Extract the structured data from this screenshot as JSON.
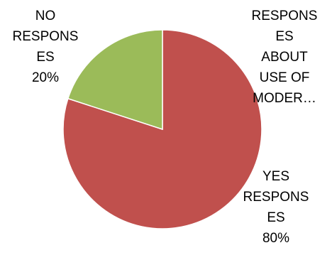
{
  "chart_data": {
    "type": "pie",
    "title": "RESPONSES ABOUT USE OF MODER…",
    "title_lines": [
      "RESPONS",
      "ES",
      "ABOUT",
      "USE OF",
      "MODER…"
    ],
    "slices": [
      {
        "name": "YES RESPONSES",
        "value": 80,
        "percent_label": "80%",
        "label_lines": [
          "YES",
          "RESPONS",
          "ES"
        ],
        "color": "#C0504D"
      },
      {
        "name": "NO RESPONSES",
        "value": 20,
        "percent_label": "20%",
        "label_lines": [
          "NO",
          "RESPONS",
          "ES"
        ],
        "color": "#9BBB59"
      }
    ],
    "start_angle": "12 o'clock",
    "direction": "clockwise",
    "legend": "none"
  }
}
